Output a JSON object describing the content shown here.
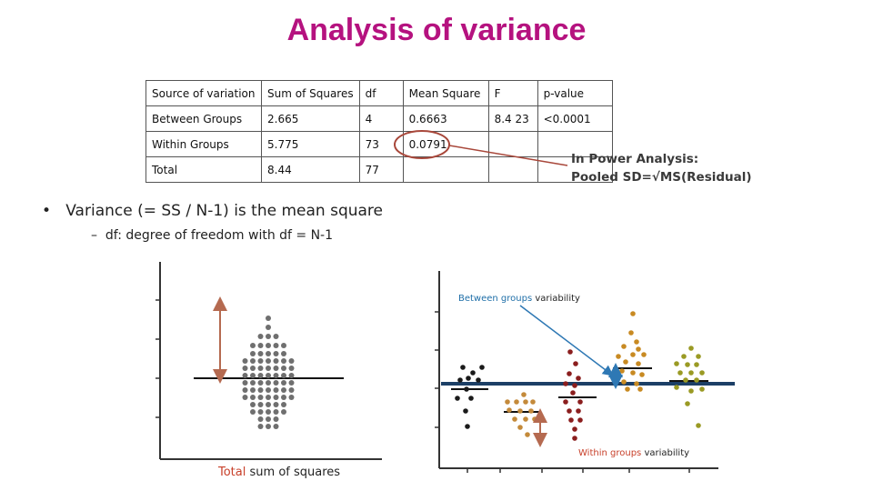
{
  "title": "Analysis of variance",
  "table": {
    "headers": [
      "Source of  variation",
      "Sum of Squares",
      "df",
      "Mean Square",
      "F",
      "p-value"
    ],
    "rows": [
      [
        "Between Groups",
        "2.665",
        "4",
        "0.6663",
        "8.4 23",
        "<0.0001"
      ],
      [
        "Within Groups",
        "5.775",
        "73",
        "0.0791",
        "",
        ""
      ],
      [
        "Total",
        "8.44",
        "77",
        "",
        "",
        ""
      ]
    ]
  },
  "bullet": "Variance (=  SS / N-1) is the mean square",
  "subbullet": "df: degree of freedom with df = N-1",
  "note": {
    "line1": "In Power Analysis:",
    "line2": "Pooled SD=√MS(Residual)"
  },
  "left_plot": {
    "caption_highlight": "Total",
    "caption_rest": " sum of squares"
  },
  "right_plot": {
    "between_highlight": "Between groups",
    "between_rest": " variability",
    "within_highlight": "Within groups",
    "within_rest": " variability"
  },
  "colors": {
    "title": "#b5127f",
    "between_text": "#1f6fa8",
    "within_text": "#c8402a",
    "total_text": "#c8402a",
    "arrow_brown": "#b56a50",
    "arrow_blue": "#2e78b4",
    "mean_line": "#1c3f66",
    "ellipse": "#a8473a",
    "group_colors": [
      "#1a1a1a",
      "#c48a3a",
      "#8b1e1e",
      "#c88a22",
      "#9a9a24"
    ]
  }
}
